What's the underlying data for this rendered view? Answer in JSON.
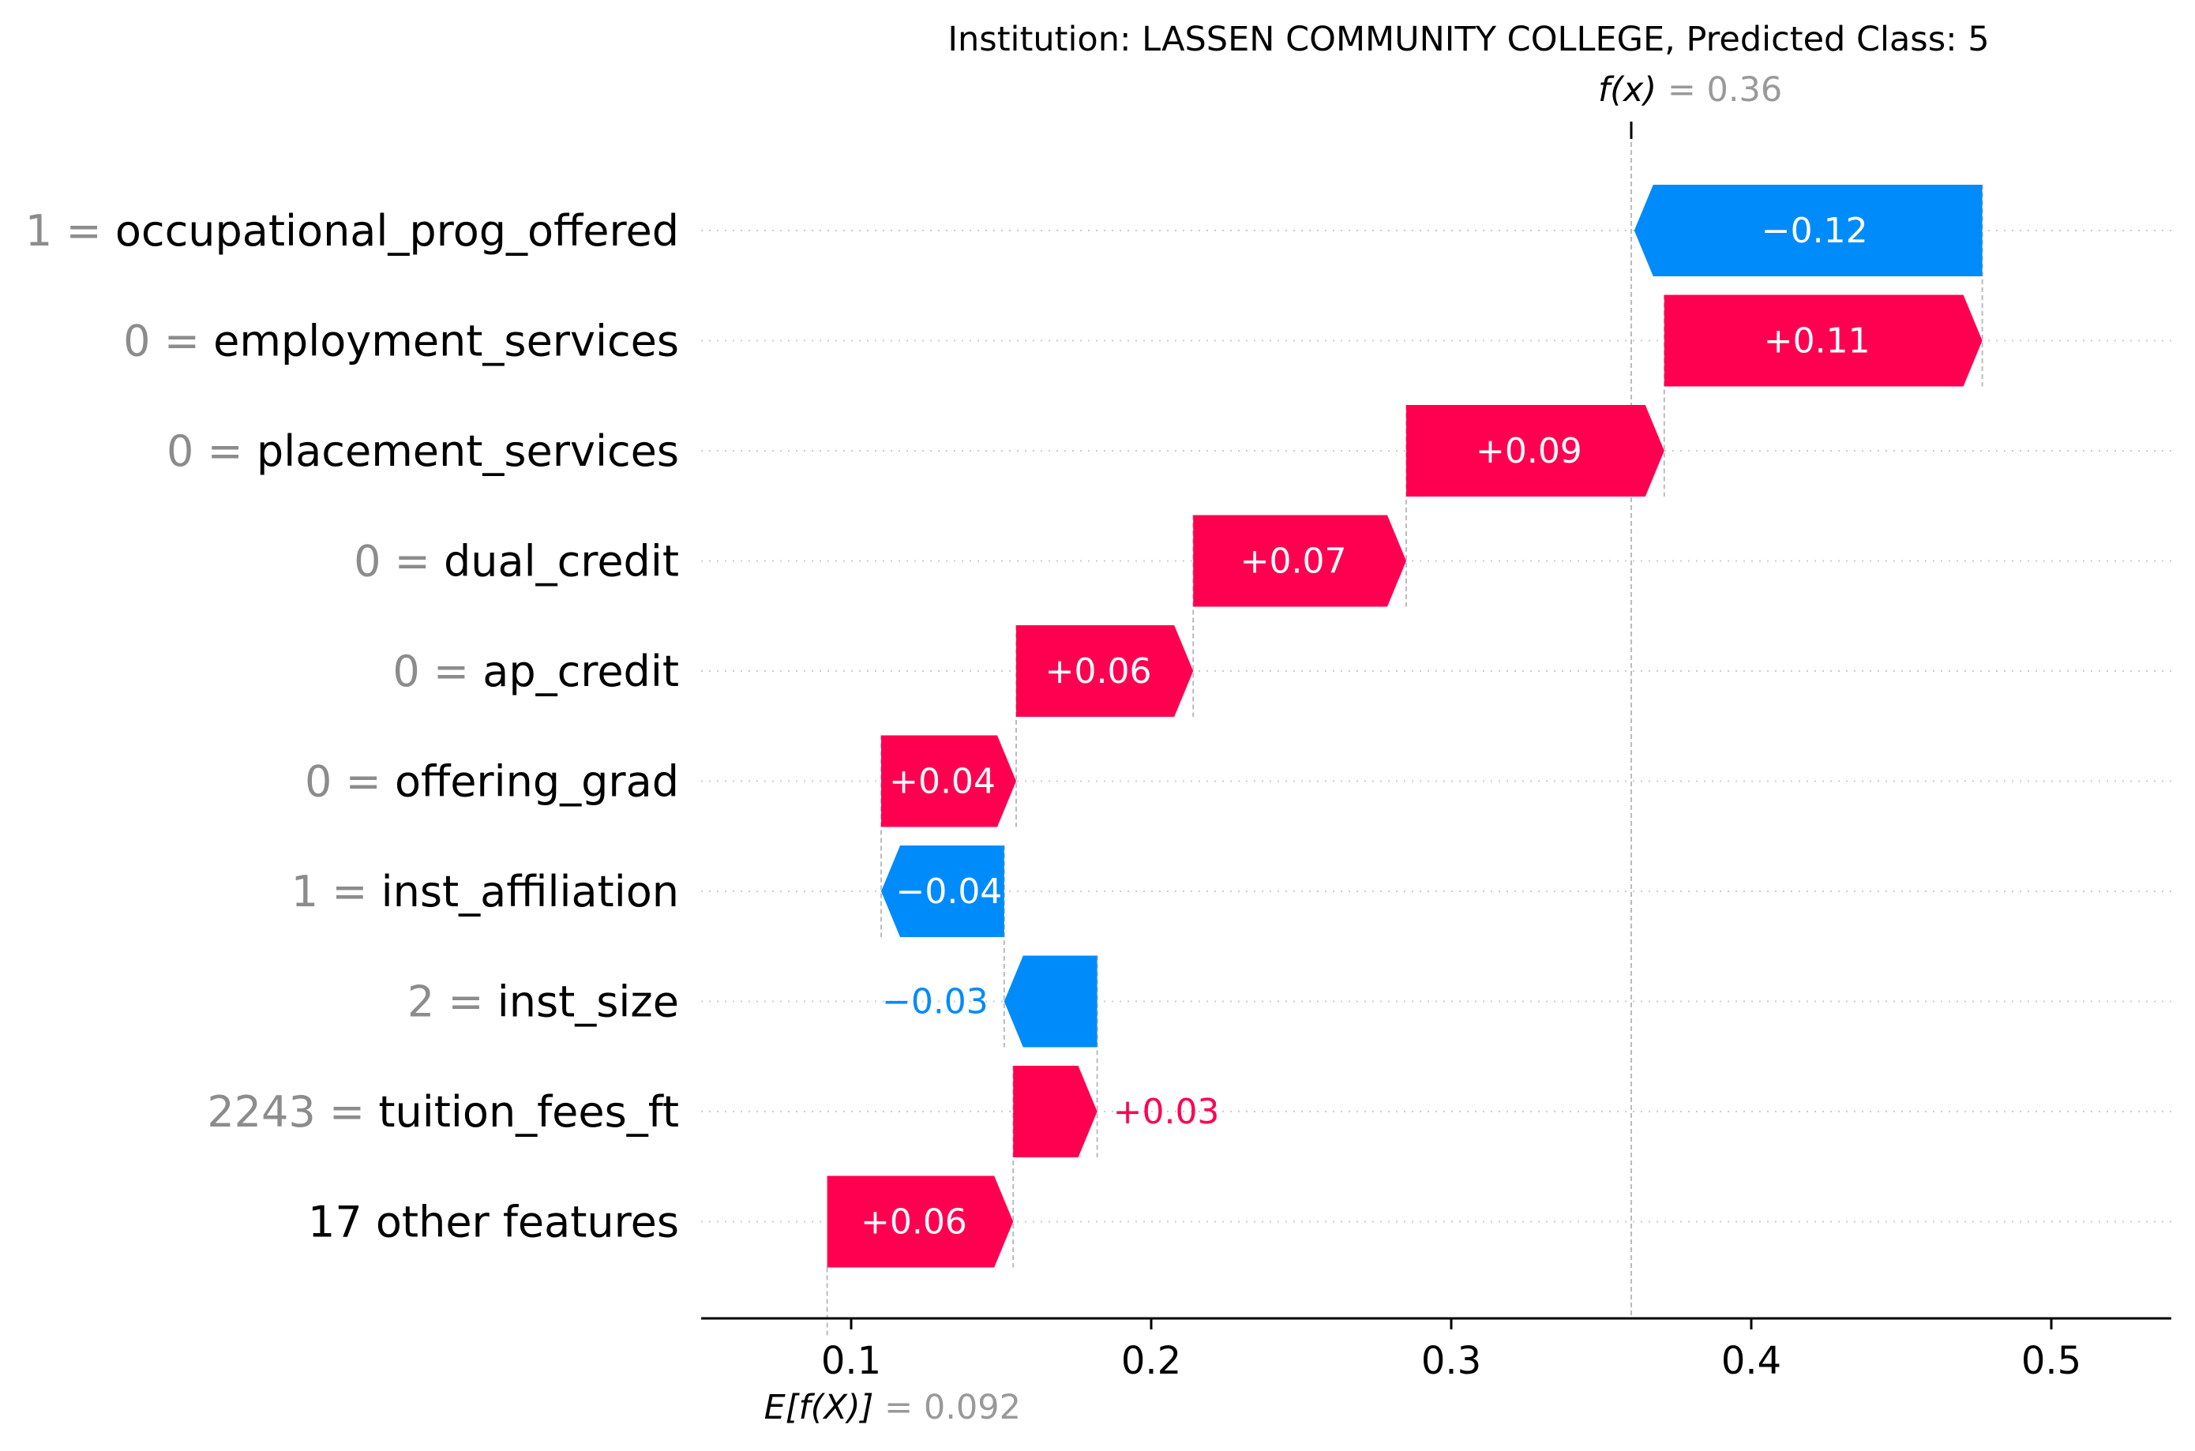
{
  "chart_data": {
    "type": "waterfall",
    "title": "Institution: LASSEN COMMUNITY COLLEGE, Predicted Class: 5",
    "fx_label": "f(x)",
    "fx_value": "0.36",
    "efx_label": "E[f(X)]",
    "efx_value": "0.092",
    "base_value": 0.092,
    "final_value": 0.36,
    "xlim": [
      0.05,
      0.54
    ],
    "xticks": [
      0.1,
      0.2,
      0.3,
      0.4,
      0.5
    ],
    "xtick_labels": [
      "0.1",
      "0.2",
      "0.3",
      "0.4",
      "0.5"
    ],
    "grid": "horizontal dotted lines per feature",
    "colors": {
      "positive": "#ff0051",
      "negative": "#008bfb",
      "label_inside": "#ffffff",
      "feature_value": "#8c8c8c",
      "guide_line": "#bbbbbb"
    },
    "features": [
      {
        "value": "1",
        "name": "occupational_prog_offered",
        "shap": -0.116,
        "label": "−0.12"
      },
      {
        "value": "0",
        "name": "employment_services",
        "shap": 0.106,
        "label": "+0.11"
      },
      {
        "value": "0",
        "name": "placement_services",
        "shap": 0.086,
        "label": "+0.09"
      },
      {
        "value": "0",
        "name": "dual_credit",
        "shap": 0.071,
        "label": "+0.07"
      },
      {
        "value": "0",
        "name": "ap_credit",
        "shap": 0.059,
        "label": "+0.06"
      },
      {
        "value": "0",
        "name": "offering_grad",
        "shap": 0.045,
        "label": "+0.04"
      },
      {
        "value": "1",
        "name": "inst_affiliation",
        "shap": -0.041,
        "label": "−0.04"
      },
      {
        "value": "2",
        "name": "inst_size",
        "shap": -0.031,
        "label": "−0.03"
      },
      {
        "value": "2243",
        "name": "tuition_fees_ft",
        "shap": 0.028,
        "label": "+0.03"
      },
      {
        "value": "",
        "name": "17 other features",
        "shap": 0.062,
        "label": "+0.06"
      }
    ]
  }
}
